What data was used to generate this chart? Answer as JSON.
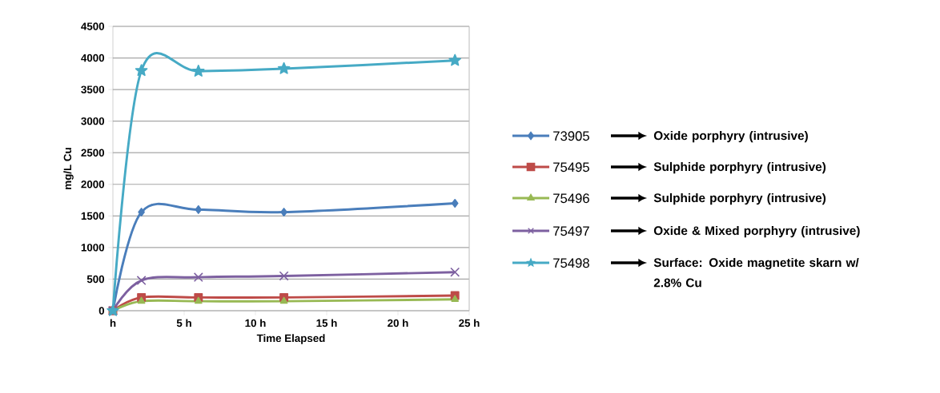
{
  "chart_data": {
    "type": "line",
    "xlabel": "Time Elapsed",
    "ylabel": "mg/L Cu",
    "xlim": [
      0,
      25
    ],
    "xticks": [
      {
        "value": 0,
        "label": "h"
      },
      {
        "value": 5,
        "label": "5 h"
      },
      {
        "value": 10,
        "label": "10 h"
      },
      {
        "value": 15,
        "label": "15 h"
      },
      {
        "value": 20,
        "label": "20 h"
      },
      {
        "value": 25,
        "label": "25 h"
      }
    ],
    "ylim": [
      0,
      4500
    ],
    "yticks": [
      0,
      500,
      1000,
      1500,
      2000,
      2500,
      3000,
      3500,
      4000,
      4500
    ],
    "x": [
      0,
      2,
      6,
      12,
      24
    ],
    "series": [
      {
        "name": "73905",
        "color": "#4a7ebb",
        "marker": "diamond",
        "values": [
          0,
          1560,
          1600,
          1560,
          1700
        ]
      },
      {
        "name": "75495",
        "color": "#be4b48",
        "marker": "square",
        "values": [
          0,
          210,
          210,
          210,
          240
        ]
      },
      {
        "name": "75496",
        "color": "#98b954",
        "marker": "triangle",
        "values": [
          0,
          150,
          150,
          150,
          180
        ]
      },
      {
        "name": "75497",
        "color": "#7d60a0",
        "marker": "cross",
        "values": [
          0,
          480,
          530,
          550,
          610
        ]
      },
      {
        "name": "75498",
        "color": "#46aac5",
        "marker": "star",
        "values": [
          0,
          3800,
          3790,
          3830,
          3960
        ]
      }
    ],
    "grid": "y",
    "legend": "right",
    "annotations": [
      "Oxide porphyry (intrusive)",
      "Sulphide porphyry (intrusive)",
      "Sulphide porphyry (intrusive)",
      "Oxide & Mixed porphyry (intrusive)",
      "Surface: Oxide magnetite skarn w/ 2.8% Cu"
    ]
  }
}
